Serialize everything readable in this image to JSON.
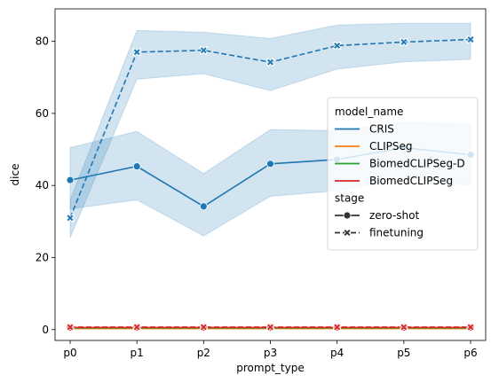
{
  "chart_data": {
    "type": "line",
    "title": "",
    "xlabel": "prompt_type",
    "ylabel": "dice",
    "categories": [
      "p0",
      "p1",
      "p2",
      "p3",
      "p4",
      "p5",
      "p6"
    ],
    "ylim": [
      -3,
      89
    ],
    "yticks": [
      0,
      20,
      40,
      60,
      80
    ],
    "grid": false,
    "legend": {
      "placement": "center-right",
      "hue_title": "model_name",
      "style_title": "stage",
      "hue_entries": [
        {
          "name": "CRIS",
          "color": "#1f77b4"
        },
        {
          "name": "CLIPSeg",
          "color": "#ff7f0e"
        },
        {
          "name": "BiomedCLIPSeg-D",
          "color": "#2ca02c"
        },
        {
          "name": "BiomedCLIPSeg",
          "color": "#d62728"
        }
      ],
      "style_entries": [
        {
          "name": "zero-shot",
          "dash": "solid",
          "marker": "circle"
        },
        {
          "name": "finetuning",
          "dash": "dashed",
          "marker": "x"
        }
      ]
    },
    "series": [
      {
        "model": "CRIS",
        "stage": "zero-shot",
        "color": "#1f77b4",
        "dash": "solid",
        "marker": "circle",
        "values": [
          41.5,
          45.3,
          34.2,
          46.0,
          47.2,
          50.5,
          48.5
        ],
        "ci_low": [
          33.5,
          36.0,
          26.0,
          37.0,
          38.5,
          42.0,
          40.0
        ],
        "ci_high": [
          50.5,
          55.0,
          43.3,
          55.5,
          55.2,
          57.5,
          57.0
        ]
      },
      {
        "model": "CRIS",
        "stage": "finetuning",
        "color": "#1f77b4",
        "dash": "dashed",
        "marker": "x",
        "values": [
          31.0,
          77.0,
          77.5,
          74.2,
          78.8,
          79.8,
          80.5
        ],
        "ci_low": [
          25.5,
          69.5,
          71.0,
          66.3,
          72.3,
          74.3,
          75.0
        ],
        "ci_high": [
          36.0,
          83.0,
          82.5,
          80.8,
          84.5,
          85.0,
          85.0
        ]
      },
      {
        "model": "CLIPSeg",
        "stage": "zero-shot",
        "color": "#ff7f0e",
        "dash": "solid",
        "marker": "circle",
        "values": [
          0.3,
          0.3,
          0.3,
          0.3,
          0.3,
          0.3,
          0.3
        ]
      },
      {
        "model": "CLIPSeg",
        "stage": "finetuning",
        "color": "#ff7f0e",
        "dash": "dashed",
        "marker": "x",
        "values": [
          0.4,
          0.4,
          0.4,
          0.4,
          0.4,
          0.4,
          0.4
        ]
      },
      {
        "model": "BiomedCLIPSeg-D",
        "stage": "zero-shot",
        "color": "#2ca02c",
        "dash": "solid",
        "marker": "circle",
        "values": [
          0.5,
          0.5,
          0.5,
          0.5,
          0.5,
          0.5,
          0.5
        ]
      },
      {
        "model": "BiomedCLIPSeg-D",
        "stage": "finetuning",
        "color": "#2ca02c",
        "dash": "dashed",
        "marker": "x",
        "values": [
          0.5,
          0.5,
          0.5,
          0.5,
          0.5,
          0.5,
          0.5
        ]
      },
      {
        "model": "BiomedCLIPSeg",
        "stage": "zero-shot",
        "color": "#d62728",
        "dash": "solid",
        "marker": "circle",
        "values": [
          0.6,
          0.6,
          0.6,
          0.6,
          0.6,
          0.6,
          0.6
        ]
      },
      {
        "model": "BiomedCLIPSeg",
        "stage": "finetuning",
        "color": "#d62728",
        "dash": "dashed",
        "marker": "x",
        "values": [
          0.7,
          0.7,
          0.7,
          0.7,
          0.7,
          0.7,
          0.7
        ]
      }
    ]
  }
}
